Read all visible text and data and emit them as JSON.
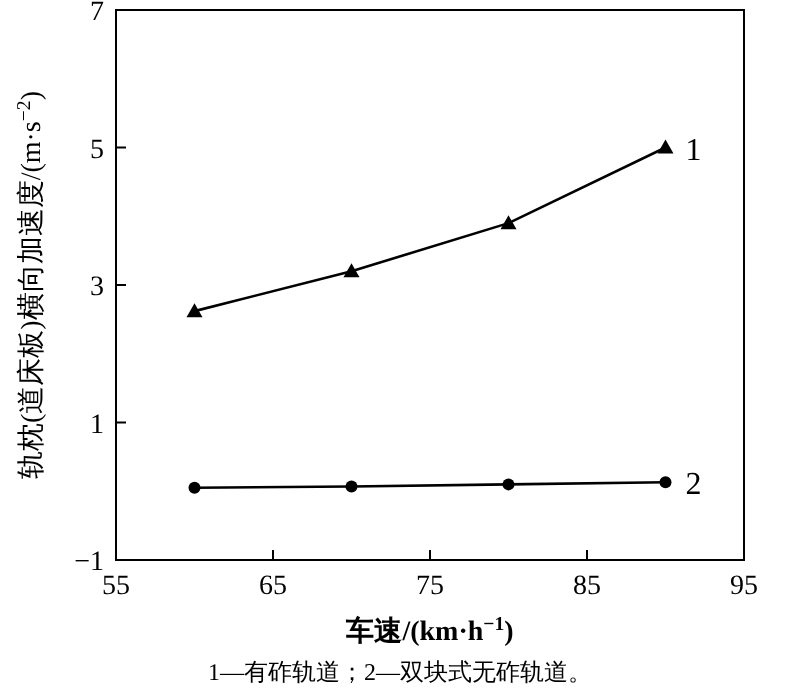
{
  "chart_data": {
    "type": "line",
    "xlabel": "车速/(km·h$^{−1}$)",
    "ylabel": "轨枕(道床板)横向加速度/(m·s$^{−2}$)",
    "annotations": [
      "1—有砟轨道；2—双块式无砟轨道。"
    ],
    "xlim": [
      55,
      95
    ],
    "xticks": [
      55,
      65,
      75,
      85,
      95
    ],
    "ylim": [
      -1,
      7
    ],
    "yticks": [
      -1,
      1,
      3,
      5,
      7
    ],
    "series": [
      {
        "name": "1",
        "color": "#000000",
        "marker": "triangle",
        "x": [
          60,
          70,
          80,
          90
        ],
        "values": [
          2.62,
          3.2,
          3.9,
          5.0
        ]
      },
      {
        "name": "2",
        "color": "#000000",
        "marker": "circle",
        "x": [
          60,
          70,
          80,
          90
        ],
        "values": [
          0.05,
          0.07,
          0.1,
          0.13
        ]
      }
    ],
    "legend": false,
    "grid": false
  }
}
